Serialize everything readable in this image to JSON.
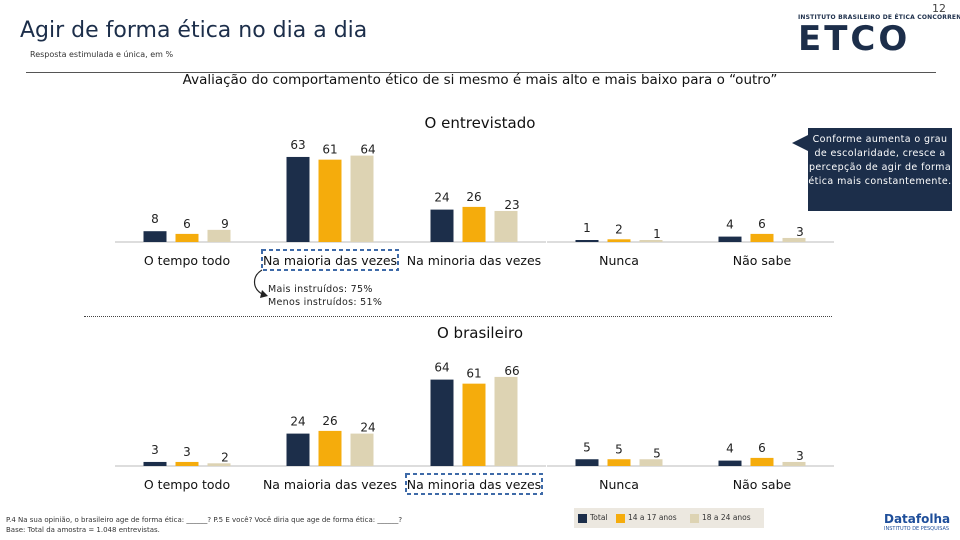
{
  "page_number": "12",
  "title": "Agir de forma ética no dia a dia",
  "subtitle": "Resposta estimulada e única, em %",
  "logo": {
    "institute": "INSTITUTO BRASILEIRO DE ÉTICA CONCORRENCIAL",
    "brand": "ETCO"
  },
  "headline": "Avaliação do comportamento ético de si mesmo é mais alto e mais baixo para o “outro”",
  "callout": "Conforme aumenta o grau de escolaridade, cresce a percepção de agir de forma ética mais constantemente.",
  "note": {
    "line1": "Mais instruídos: 75%",
    "line2": "Menos instruídos: 51%"
  },
  "footnote": {
    "line1": "P.4 Na sua opinião, o brasileiro age de forma ética: ______? P.5 E você? Você diria que age de forma ética: ______?",
    "line2": "Base: Total da amostra = 1.048 entrevistas."
  },
  "legend": [
    {
      "label": "Total",
      "color": "#1c2e4a"
    },
    {
      "label": "14 a 17 anos",
      "color": "#f5ac0c"
    },
    {
      "label": "18 a 24 anos",
      "color": "#ddd3b3"
    }
  ],
  "branding": {
    "datafolha": "Datafolha",
    "datafolha_sub": "INSTITUTO DE PESQUISAS"
  },
  "colors": {
    "total": "#1c2e4a",
    "teen": "#f5ac0c",
    "young": "#ddd3b3",
    "highlight": "#3e6aa8"
  },
  "chart_data": [
    {
      "type": "bar",
      "title": "O entrevistado",
      "categories": [
        "O tempo todo",
        "Na maioria das vezes",
        "Na minoria das vezes",
        "Nunca",
        "Não sabe"
      ],
      "series": [
        {
          "name": "Total",
          "values": [
            8,
            63,
            24,
            1,
            4
          ]
        },
        {
          "name": "14 a 17 anos",
          "values": [
            6,
            61,
            26,
            2,
            6
          ]
        },
        {
          "name": "18 a 24 anos",
          "values": [
            9,
            64,
            23,
            1,
            3
          ]
        }
      ],
      "highlighted_category": "Na maioria das vezes",
      "ylim": [
        0,
        70
      ]
    },
    {
      "type": "bar",
      "title": "O brasileiro",
      "categories": [
        "O tempo todo",
        "Na maioria das vezes",
        "Na minoria das vezes",
        "Nunca",
        "Não sabe"
      ],
      "series": [
        {
          "name": "Total",
          "values": [
            3,
            24,
            64,
            5,
            4
          ]
        },
        {
          "name": "14 a 17 anos",
          "values": [
            3,
            26,
            61,
            5,
            6
          ]
        },
        {
          "name": "18 a 24 anos",
          "values": [
            2,
            24,
            66,
            5,
            3
          ]
        }
      ],
      "highlighted_category": "Na minoria das vezes",
      "ylim": [
        0,
        70
      ]
    }
  ]
}
